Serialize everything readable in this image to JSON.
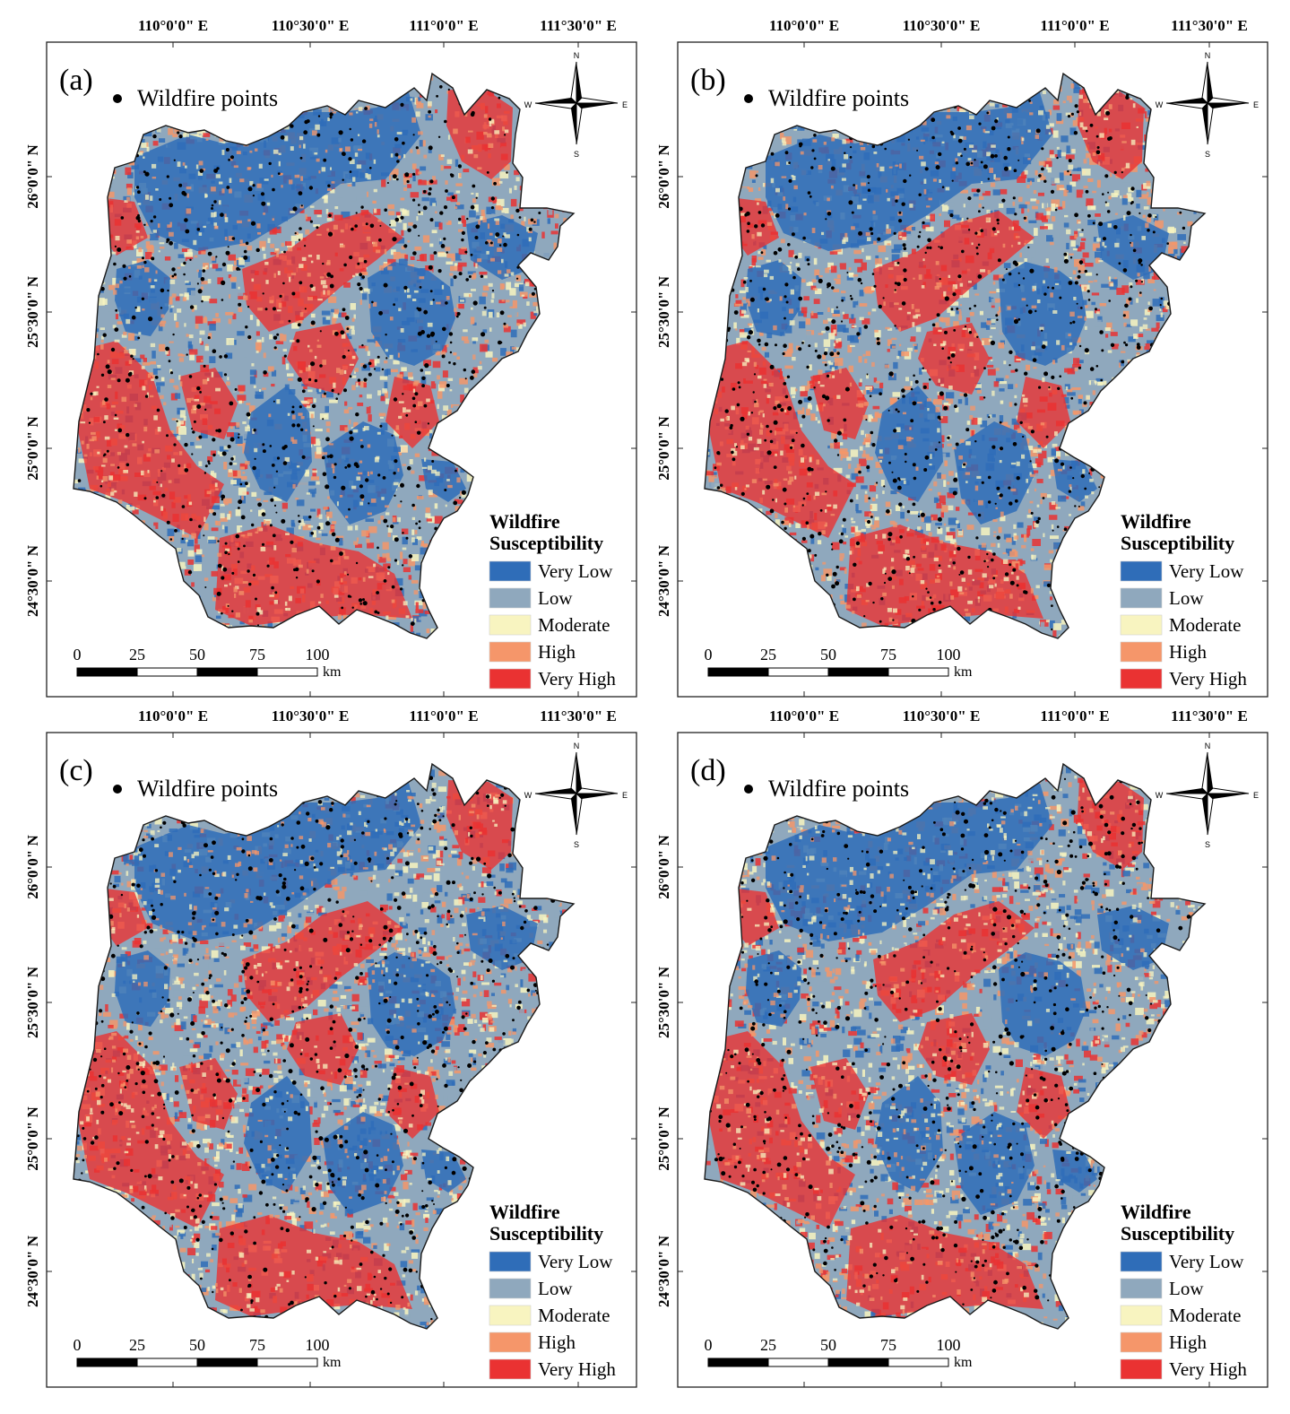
{
  "legend": {
    "title_line1": "Wildfire",
    "title_line2": "Susceptibility",
    "point_label": "Wildfire points",
    "classes": [
      {
        "label": "Very Low",
        "color": "#2f6db8"
      },
      {
        "label": "Low",
        "color": "#8fa8bd"
      },
      {
        "label": "Moderate",
        "color": "#f8f4c0"
      },
      {
        "label": "High",
        "color": "#f5966a"
      },
      {
        "label": "Very High",
        "color": "#ea3232"
      }
    ]
  },
  "axes": {
    "longitude_labels": [
      "110°0'0\" E",
      "110°30'0\" E",
      "111°0'0\" E",
      "111°30'0\" E"
    ],
    "latitude_labels": [
      "26°0'0\" N",
      "25°30'0\" N",
      "25°0'0\" N",
      "24°30'0\" N"
    ]
  },
  "scalebar": {
    "ticks": [
      "0",
      "25",
      "50",
      "75",
      "100"
    ],
    "unit": "km"
  },
  "compass": {
    "n": "N",
    "s": "S",
    "e": "E",
    "w": "W"
  },
  "panels": [
    {
      "id": "a",
      "label": "(a)"
    },
    {
      "id": "b",
      "label": "(b)"
    },
    {
      "id": "c",
      "label": "(c)"
    },
    {
      "id": "d",
      "label": "(d)"
    }
  ]
}
